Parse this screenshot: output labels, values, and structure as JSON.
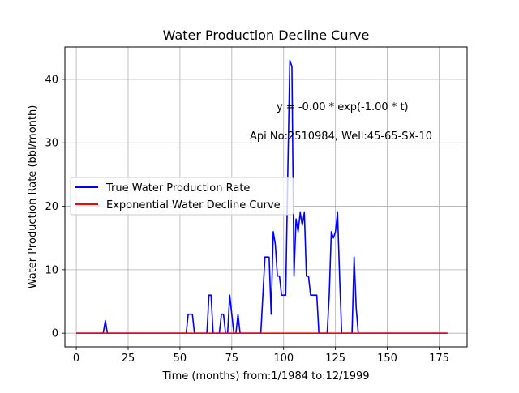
{
  "chart_data": {
    "type": "line",
    "title": "Water Production Decline Curve",
    "xlabel": "Time (months) from:1/1984 to:12/1999",
    "ylabel": "Water Production Rate (bbl/month)",
    "xlim": [
      -5.5,
      188.5
    ],
    "ylim": [
      -2.15,
      45.1
    ],
    "xticks": [
      0,
      25,
      50,
      75,
      100,
      125,
      150,
      175
    ],
    "xtick_labels": [
      "0",
      "25",
      "50",
      "75",
      "100",
      "125",
      "150",
      "175"
    ],
    "yticks": [
      0,
      10,
      20,
      30,
      40
    ],
    "ytick_labels": [
      "0",
      "10",
      "20",
      "30",
      "40"
    ],
    "grid": true,
    "legend_position": "center-left",
    "annotations": [
      {
        "text": "y = -0.00 * exp(-1.00 * t)",
        "x": 94.5,
        "y": 35
      },
      {
        "text": "Api No:2510984, Well:45-65-SX-10",
        "x": 81.5,
        "y": 30.3
      }
    ],
    "series": [
      {
        "name": "True Water Production Rate",
        "color": "#0000ff",
        "x": [
          0,
          13,
          14,
          15,
          16,
          52,
          53,
          54,
          55,
          56,
          57,
          58,
          62,
          63,
          64,
          65,
          66,
          67,
          69,
          70,
          71,
          72,
          73,
          74,
          75,
          76,
          77,
          78,
          79,
          80,
          89,
          90,
          91,
          92,
          93,
          94,
          95,
          96,
          97,
          98,
          99,
          100,
          101,
          102,
          103,
          104,
          105,
          106,
          107,
          108,
          109,
          110,
          111,
          112,
          113,
          114,
          115,
          116,
          117,
          121,
          122,
          123,
          124,
          125,
          126,
          127,
          128,
          129,
          133,
          134,
          135,
          136,
          137,
          179
        ],
        "y": [
          0,
          0,
          2,
          0,
          0,
          0,
          0,
          3,
          3,
          3,
          0,
          0,
          0,
          0,
          6,
          6,
          0,
          0,
          0,
          3,
          3,
          0,
          0,
          6,
          3,
          0,
          0,
          3,
          0,
          0,
          0,
          6,
          12,
          12,
          12,
          3,
          16,
          14,
          9,
          9,
          6,
          6,
          6,
          25,
          43,
          42,
          9,
          18,
          16,
          19,
          17,
          19,
          9,
          9,
          6,
          6,
          6,
          6,
          0,
          0,
          6,
          16,
          15,
          16,
          19,
          9,
          0,
          0,
          0,
          12,
          4,
          0,
          0,
          0
        ]
      },
      {
        "name": "Exponential Water Decline Curve",
        "color": "#ff0000",
        "x": [
          0,
          179
        ],
        "y": [
          0,
          0
        ]
      }
    ]
  }
}
